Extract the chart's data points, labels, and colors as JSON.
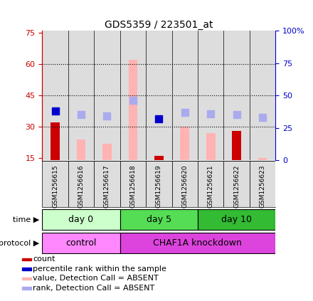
{
  "title": "GDS5359 / 223501_at",
  "samples": [
    "GSM1256615",
    "GSM1256616",
    "GSM1256617",
    "GSM1256618",
    "GSM1256619",
    "GSM1256620",
    "GSM1256621",
    "GSM1256622",
    "GSM1256623"
  ],
  "bar_values": [
    32,
    24,
    22,
    62,
    16,
    30,
    27,
    28,
    15
  ],
  "bar_colors": [
    "#cc0000",
    "#ffb3b3",
    "#ffb3b3",
    "#ffb3b3",
    "#cc0000",
    "#ffb3b3",
    "#ffb3b3",
    "#cc0000",
    "#ffb3b3"
  ],
  "rank_values": [
    38,
    35,
    34,
    46,
    32,
    37,
    36,
    35,
    33
  ],
  "rank_colors": [
    "#0000cc",
    "#aaaaee",
    "#aaaaee",
    "#aaaaee",
    "#0000cc",
    "#aaaaee",
    "#aaaaee",
    "#aaaaee",
    "#aaaaee"
  ],
  "ylim_left": [
    14,
    76
  ],
  "ylim_right": [
    0,
    100
  ],
  "yticks_left": [
    15,
    30,
    45,
    60,
    75
  ],
  "yticks_right": [
    0,
    25,
    50,
    75,
    100
  ],
  "ytick_labels_right": [
    "0",
    "25",
    "50",
    "75",
    "100%"
  ],
  "hlines": [
    30,
    45,
    60
  ],
  "time_groups": [
    {
      "label": "day 0",
      "start": 0,
      "end": 3,
      "color": "#ccffcc"
    },
    {
      "label": "day 5",
      "start": 3,
      "end": 6,
      "color": "#55dd55"
    },
    {
      "label": "day 10",
      "start": 6,
      "end": 9,
      "color": "#33bb33"
    }
  ],
  "protocol_groups": [
    {
      "label": "control",
      "start": 0,
      "end": 3,
      "color": "#ff88ff"
    },
    {
      "label": "CHAF1A knockdown",
      "start": 3,
      "end": 9,
      "color": "#dd44dd"
    }
  ],
  "legend_items": [
    {
      "color": "#cc0000",
      "label": "count"
    },
    {
      "color": "#0000cc",
      "label": "percentile rank within the sample"
    },
    {
      "color": "#ffb3b3",
      "label": "value, Detection Call = ABSENT"
    },
    {
      "color": "#aaaaee",
      "label": "rank, Detection Call = ABSENT"
    }
  ],
  "left_axis_color": "#cc0000",
  "right_axis_color": "#0000cc",
  "bar_width": 0.35,
  "marker_size": 7,
  "bg_color": "#dddddd",
  "plot_bg": "#ffffff"
}
